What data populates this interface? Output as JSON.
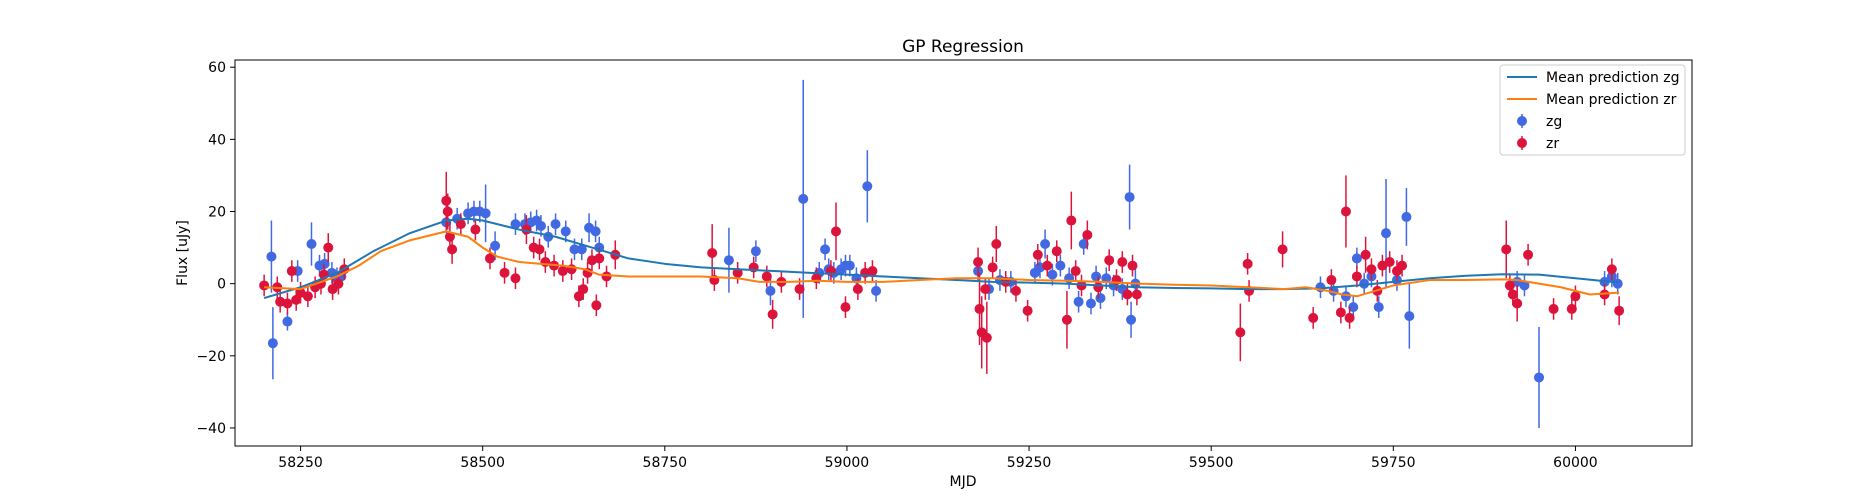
{
  "chart_data": {
    "type": "scatter",
    "title": "GP Regression",
    "xlabel": "MJD",
    "ylabel": "Flux [uJy]",
    "xlim": [
      58160,
      60160
    ],
    "ylim": [
      -45,
      62
    ],
    "xticks": [
      58250,
      58500,
      58750,
      59000,
      59250,
      59500,
      59750,
      60000
    ],
    "yticks": [
      -40,
      -20,
      0,
      20,
      40,
      60
    ],
    "legend_position": "top-right",
    "grid": false,
    "lines": [
      {
        "name": "Mean prediction zg",
        "color": "#1f77b4",
        "x": [
          58200,
          58250,
          58300,
          58350,
          58400,
          58450,
          58480,
          58500,
          58550,
          58600,
          58650,
          58700,
          58750,
          58800,
          58850,
          58900,
          58950,
          59000,
          59050,
          59100,
          59150,
          59200,
          59250,
          59300,
          59350,
          59400,
          59450,
          59500,
          59550,
          59600,
          59650,
          59700,
          59750,
          59800,
          59850,
          59900,
          59950,
          60000,
          60050,
          60060
        ],
        "y": [
          -4,
          -1,
          3,
          9,
          14,
          17.5,
          18,
          17.5,
          15,
          13,
          10,
          7,
          5.5,
          4.5,
          4,
          3.5,
          3,
          2.5,
          2,
          1.5,
          1,
          0.5,
          0.3,
          0,
          -0.5,
          -1,
          -1.2,
          -1.3,
          -1.5,
          -1.5,
          -1.3,
          -0.5,
          0.5,
          1.5,
          2.2,
          2.6,
          2.5,
          1.5,
          0.5,
          0.5
        ]
      },
      {
        "name": "Mean prediction zr",
        "color": "#ff7f0e",
        "x": [
          58200,
          58250,
          58300,
          58330,
          58360,
          58400,
          58450,
          58480,
          58500,
          58520,
          58550,
          58580,
          58610,
          58640,
          58660,
          58700,
          58750,
          58800,
          58850,
          58880,
          58920,
          58960,
          59000,
          59050,
          59100,
          59150,
          59200,
          59250,
          59300,
          59350,
          59400,
          59450,
          59500,
          59550,
          59600,
          59630,
          59660,
          59680,
          59700,
          59750,
          59800,
          59850,
          59900,
          59920,
          59950,
          59980,
          60020,
          60060
        ],
        "y": [
          -1,
          -1.5,
          2,
          5,
          9,
          12,
          14.5,
          13,
          10,
          7.5,
          6,
          5.5,
          5,
          4,
          2.5,
          2,
          2,
          2,
          1.5,
          0.5,
          0.5,
          0.8,
          0.5,
          0.5,
          1,
          1.5,
          1.5,
          1,
          0.8,
          0.5,
          0,
          -0.3,
          -0.5,
          -1,
          -1.5,
          -1,
          -2,
          -3,
          -3.5,
          -0.5,
          1,
          1,
          1.2,
          1,
          0,
          -1,
          -3,
          -2.5
        ]
      }
    ],
    "series": [
      {
        "name": "zg",
        "color": "#4169e1",
        "points": [
          [
            58210,
            7.5,
            10
          ],
          [
            58212,
            -16.5,
            10
          ],
          [
            58232,
            -10.5,
            2.5
          ],
          [
            58246,
            3.5,
            3
          ],
          [
            58265,
            11,
            6
          ],
          [
            58276,
            5,
            3
          ],
          [
            58283,
            5.5,
            3
          ],
          [
            58293,
            3,
            3
          ],
          [
            58300,
            1.5,
            3
          ],
          [
            58306,
            2,
            3
          ],
          [
            58450,
            17,
            3
          ],
          [
            58465,
            18,
            3
          ],
          [
            58480,
            19.5,
            3
          ],
          [
            58488,
            20,
            3
          ],
          [
            58496,
            20,
            3
          ],
          [
            58504,
            19.5,
            8
          ],
          [
            58517,
            10.5,
            4
          ],
          [
            58545,
            16.5,
            3
          ],
          [
            58558,
            16.5,
            3
          ],
          [
            58566,
            17,
            3
          ],
          [
            58574,
            17.5,
            3
          ],
          [
            58580,
            16,
            3
          ],
          [
            58590,
            13,
            3
          ],
          [
            58600,
            16.5,
            3
          ],
          [
            58614,
            14.5,
            3
          ],
          [
            58626,
            9.5,
            3
          ],
          [
            58636,
            9.5,
            3
          ],
          [
            58646,
            15.5,
            4
          ],
          [
            58655,
            14.5,
            3
          ],
          [
            58660,
            10,
            3
          ],
          [
            58838,
            6.5,
            9
          ],
          [
            58875,
            9,
            3
          ],
          [
            58895,
            -2,
            4
          ],
          [
            58940,
            23.5,
            33
          ],
          [
            58962,
            3,
            3
          ],
          [
            58970,
            9.5,
            3
          ],
          [
            58975,
            4,
            3
          ],
          [
            58982,
            3,
            3
          ],
          [
            58992,
            4,
            3
          ],
          [
            58998,
            5,
            3
          ],
          [
            59004,
            5,
            3
          ],
          [
            59013,
            1.5,
            3
          ],
          [
            59028,
            27,
            10
          ],
          [
            59040,
            -2,
            3
          ],
          [
            59180,
            3.5,
            3
          ],
          [
            59195,
            -1.5,
            3
          ],
          [
            59210,
            1,
            3
          ],
          [
            59225,
            0.5,
            3
          ],
          [
            59258,
            3,
            3
          ],
          [
            59265,
            4.5,
            3
          ],
          [
            59272,
            11,
            4
          ],
          [
            59282,
            2.5,
            3
          ],
          [
            59293,
            5,
            3
          ],
          [
            59305,
            1.5,
            3
          ],
          [
            59318,
            -5,
            3
          ],
          [
            59325,
            11,
            3
          ],
          [
            59335,
            -5.5,
            3
          ],
          [
            59342,
            2,
            3
          ],
          [
            59348,
            -4,
            3
          ],
          [
            59356,
            1.5,
            3
          ],
          [
            59366,
            -0.5,
            3
          ],
          [
            59378,
            -1.5,
            3
          ],
          [
            59388,
            24,
            9
          ],
          [
            59390,
            -10,
            5
          ],
          [
            59396,
            0,
            4
          ],
          [
            59650,
            -1,
            3
          ],
          [
            59668,
            -2,
            3
          ],
          [
            59685,
            -3.5,
            3
          ],
          [
            59695,
            -6.5,
            3
          ],
          [
            59700,
            7,
            3
          ],
          [
            59710,
            0,
            3
          ],
          [
            59720,
            2,
            3
          ],
          [
            59730,
            -6.5,
            3
          ],
          [
            59740,
            14,
            15
          ],
          [
            59755,
            1,
            3
          ],
          [
            59768,
            18.5,
            8
          ],
          [
            59772,
            -9,
            9
          ],
          [
            59920,
            0.5,
            3
          ],
          [
            59930,
            -0.5,
            3
          ],
          [
            59950,
            -26,
            14
          ],
          [
            60040,
            0.5,
            3
          ],
          [
            60050,
            2,
            3
          ],
          [
            60058,
            0,
            3
          ]
        ]
      },
      {
        "name": "zr",
        "color": "#dc143c",
        "points": [
          [
            58200,
            -0.5,
            3
          ],
          [
            58218,
            -1,
            3
          ],
          [
            58222,
            -5,
            3
          ],
          [
            58232,
            -5.5,
            3
          ],
          [
            58238,
            3.5,
            3
          ],
          [
            58244,
            -4.5,
            3
          ],
          [
            58250,
            -2.5,
            3
          ],
          [
            58260,
            -3.5,
            3
          ],
          [
            58270,
            -1,
            3
          ],
          [
            58278,
            0,
            3
          ],
          [
            58282,
            2.5,
            3
          ],
          [
            58288,
            10,
            4
          ],
          [
            58294,
            -1.5,
            3
          ],
          [
            58302,
            0,
            3
          ],
          [
            58310,
            4,
            3
          ],
          [
            58450,
            23,
            8
          ],
          [
            58452,
            20,
            5
          ],
          [
            58455,
            13,
            4
          ],
          [
            58458,
            9.5,
            4
          ],
          [
            58470,
            16.5,
            3
          ],
          [
            58490,
            15,
            3
          ],
          [
            58510,
            7,
            3
          ],
          [
            58530,
            3,
            3
          ],
          [
            58545,
            1.5,
            3
          ],
          [
            58560,
            15,
            4
          ],
          [
            58570,
            10,
            3
          ],
          [
            58578,
            9.5,
            3
          ],
          [
            58586,
            6,
            3
          ],
          [
            58598,
            5,
            3
          ],
          [
            58610,
            3.5,
            3
          ],
          [
            58622,
            4,
            3
          ],
          [
            58632,
            -3.5,
            3
          ],
          [
            58638,
            -1.5,
            3
          ],
          [
            58644,
            3,
            3
          ],
          [
            58650,
            6.5,
            3
          ],
          [
            58656,
            -6,
            3
          ],
          [
            58660,
            7,
            3
          ],
          [
            58670,
            2,
            3
          ],
          [
            58682,
            8,
            4
          ],
          [
            58815,
            8.5,
            8
          ],
          [
            58818,
            1,
            3
          ],
          [
            58850,
            3,
            3
          ],
          [
            58872,
            4.5,
            3
          ],
          [
            58890,
            2,
            3
          ],
          [
            58898,
            -8.5,
            4
          ],
          [
            58910,
            0.5,
            3
          ],
          [
            58935,
            -1.5,
            3
          ],
          [
            58958,
            1.5,
            3
          ],
          [
            58978,
            3.5,
            3
          ],
          [
            58985,
            14.5,
            8
          ],
          [
            58998,
            -6.5,
            3
          ],
          [
            59015,
            -1.5,
            3
          ],
          [
            59025,
            3,
            3
          ],
          [
            59035,
            3.5,
            3
          ],
          [
            59180,
            6,
            4
          ],
          [
            59182,
            -7,
            10
          ],
          [
            59185,
            -13.5,
            10
          ],
          [
            59190,
            -1.5,
            3
          ],
          [
            59192,
            -15,
            10
          ],
          [
            59200,
            4.5,
            3
          ],
          [
            59205,
            11,
            5
          ],
          [
            59218,
            0.5,
            3
          ],
          [
            59232,
            -2,
            3
          ],
          [
            59248,
            -7.5,
            3
          ],
          [
            59262,
            8,
            3
          ],
          [
            59275,
            5,
            3
          ],
          [
            59288,
            9,
            3
          ],
          [
            59302,
            -10,
            8
          ],
          [
            59308,
            17.5,
            8
          ],
          [
            59314,
            3.5,
            3
          ],
          [
            59322,
            -0.5,
            3
          ],
          [
            59330,
            13.5,
            4
          ],
          [
            59345,
            -1,
            3
          ],
          [
            59360,
            6.5,
            3
          ],
          [
            59370,
            1,
            3
          ],
          [
            59378,
            6,
            3
          ],
          [
            59385,
            -3,
            3
          ],
          [
            59392,
            5,
            3
          ],
          [
            59398,
            -3,
            3
          ],
          [
            59540,
            -13.5,
            8
          ],
          [
            59550,
            5.5,
            3
          ],
          [
            59552,
            -2,
            3
          ],
          [
            59598,
            9.5,
            5
          ],
          [
            59640,
            -9.5,
            3
          ],
          [
            59665,
            1,
            3
          ],
          [
            59678,
            -8,
            3
          ],
          [
            59685,
            20,
            10
          ],
          [
            59690,
            -9.5,
            3
          ],
          [
            59700,
            2,
            3
          ],
          [
            59712,
            8,
            5
          ],
          [
            59720,
            4,
            3
          ],
          [
            59728,
            -2,
            3
          ],
          [
            59735,
            5,
            3
          ],
          [
            59745,
            6,
            3
          ],
          [
            59755,
            3.5,
            3
          ],
          [
            59762,
            5,
            3
          ],
          [
            59905,
            9.5,
            8
          ],
          [
            59910,
            -0.5,
            3
          ],
          [
            59914,
            -3,
            3
          ],
          [
            59920,
            -5.5,
            5
          ],
          [
            59935,
            8,
            3
          ],
          [
            59970,
            -7,
            3
          ],
          [
            59995,
            -7,
            3
          ],
          [
            60000,
            -3.5,
            3
          ],
          [
            60040,
            -3,
            3
          ],
          [
            60050,
            4,
            3
          ],
          [
            60060,
            -7.5,
            4
          ]
        ]
      }
    ]
  }
}
